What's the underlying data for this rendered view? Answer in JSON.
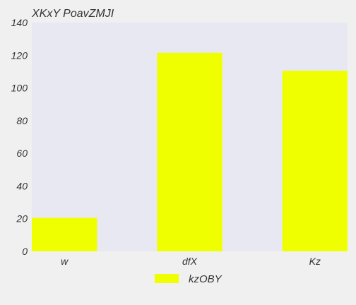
{
  "chart_data": {
    "type": "bar",
    "title": "XKxY PoavZMJI",
    "categories": [
      "w",
      "dfX",
      "Kz"
    ],
    "series": [
      {
        "name": "kzOBY",
        "values": [
          20.5,
          121.5,
          110.5
        ]
      }
    ],
    "ylim": [
      0,
      140
    ],
    "yticks": [
      0,
      20,
      40,
      60,
      80,
      100,
      120,
      140
    ],
    "xlabel": "",
    "ylabel": "",
    "grid": false,
    "legend_position": "bottom-center",
    "colors": {
      "bar": "#f0ff00",
      "plot_background": "#e8e8f2",
      "page_background": "#f0f0f0",
      "text": "#333333"
    }
  }
}
